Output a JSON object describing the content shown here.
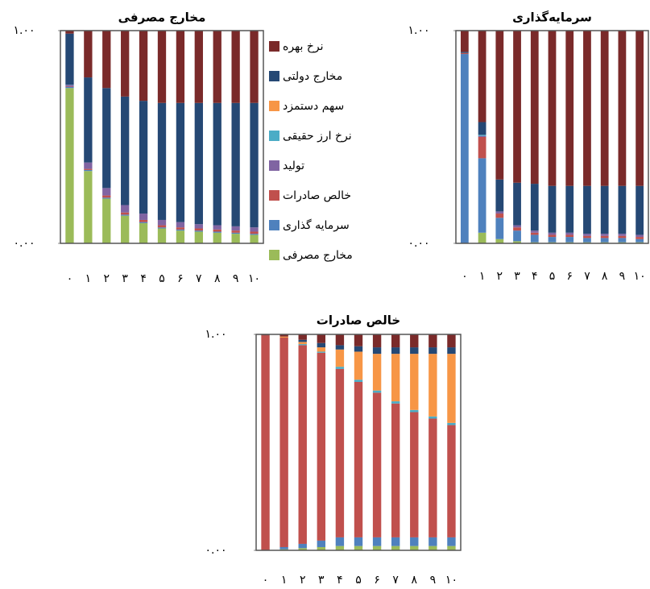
{
  "chart_data": [
    {
      "type": "bar",
      "stacked": true,
      "title": "مخارج مصرفی",
      "categories": [
        "۰",
        "۱",
        "۲",
        "۳",
        "۴",
        "۵",
        "۶",
        "۷",
        "۸",
        "۹",
        "۱۰"
      ],
      "ylim": [
        0,
        1
      ],
      "yticks": [
        {
          "value": 0,
          "label": "۰.۰۰"
        },
        {
          "value": 1,
          "label": "۱.۰۰"
        }
      ],
      "legend": "right",
      "series": [
        {
          "name": "مخارج مصرفی",
          "color": "#9bbb59",
          "values": [
            0.73,
            0.34,
            0.21,
            0.13,
            0.095,
            0.07,
            0.06,
            0.055,
            0.05,
            0.045,
            0.04
          ]
        },
        {
          "name": "سرمایه گذاری",
          "color": "#4f81bd",
          "values": [
            0.005,
            0.005,
            0.005,
            0.005,
            0.005,
            0.005,
            0.005,
            0.005,
            0.005,
            0.005,
            0.005
          ]
        },
        {
          "name": "خالص صادرات",
          "color": "#c0504d",
          "values": [
            0.002,
            0.005,
            0.01,
            0.01,
            0.01,
            0.01,
            0.01,
            0.01,
            0.01,
            0.01,
            0.01
          ]
        },
        {
          "name": "تولید",
          "color": "#8064a2",
          "values": [
            0.008,
            0.03,
            0.035,
            0.035,
            0.03,
            0.025,
            0.025,
            0.02,
            0.02,
            0.02,
            0.02
          ]
        },
        {
          "name": "نرخ ارز حقیقی",
          "color": "#4bacc6",
          "values": [
            0.001,
            0,
            0,
            0,
            0,
            0,
            0,
            0,
            0,
            0,
            0
          ]
        },
        {
          "name": "سهم دستمزد",
          "color": "#f79646",
          "values": [
            0,
            0,
            0,
            0,
            0,
            0,
            0,
            0,
            0,
            0,
            0
          ]
        },
        {
          "name": "مخارج دولتی",
          "color": "#254874",
          "values": [
            0.24,
            0.4,
            0.47,
            0.51,
            0.53,
            0.55,
            0.56,
            0.57,
            0.575,
            0.58,
            0.585
          ]
        },
        {
          "name": "نرخ بهره",
          "color": "#7a2a2a",
          "values": [
            0.014,
            0.22,
            0.27,
            0.31,
            0.33,
            0.34,
            0.34,
            0.34,
            0.34,
            0.34,
            0.34
          ]
        }
      ]
    },
    {
      "type": "bar",
      "stacked": true,
      "title": "سرمایه‌گذاری",
      "categories": [
        "۰",
        "۱",
        "۲",
        "۳",
        "۴",
        "۵",
        "۶",
        "۷",
        "۸",
        "۹",
        "۱۰"
      ],
      "ylim": [
        0,
        1
      ],
      "yticks": [
        {
          "value": 0,
          "label": "۰.۰۰"
        },
        {
          "value": 1,
          "label": "۱.۰۰"
        }
      ],
      "series": [
        {
          "color": "#9bbb59",
          "values": [
            0,
            0.05,
            0.02,
            0.01,
            0.005,
            0.005,
            0.005,
            0.005,
            0.005,
            0.005,
            0.005
          ]
        },
        {
          "color": "#4f81bd",
          "values": [
            0.89,
            0.35,
            0.1,
            0.05,
            0.035,
            0.025,
            0.025,
            0.02,
            0.02,
            0.02,
            0.015
          ]
        },
        {
          "color": "#c0504d",
          "values": [
            0.005,
            0.1,
            0.02,
            0.015,
            0.01,
            0.01,
            0.01,
            0.01,
            0.01,
            0.01,
            0.01
          ]
        },
        {
          "color": "#8064a2",
          "values": [
            0,
            0.005,
            0.01,
            0.01,
            0.01,
            0.01,
            0.01,
            0.01,
            0.01,
            0.01,
            0.01
          ]
        },
        {
          "color": "#4bacc6",
          "values": [
            0,
            0.005,
            0,
            0,
            0,
            0,
            0,
            0,
            0,
            0,
            0
          ]
        },
        {
          "color": "#f79646",
          "values": [
            0,
            0,
            0,
            0,
            0,
            0,
            0,
            0,
            0,
            0,
            0
          ]
        },
        {
          "color": "#254874",
          "values": [
            0.005,
            0.06,
            0.15,
            0.2,
            0.22,
            0.22,
            0.22,
            0.225,
            0.225,
            0.225,
            0.23
          ]
        },
        {
          "color": "#7a2a2a",
          "values": [
            0.1,
            0.43,
            0.7,
            0.715,
            0.72,
            0.73,
            0.73,
            0.73,
            0.73,
            0.73,
            0.73
          ]
        }
      ]
    },
    {
      "type": "bar",
      "stacked": true,
      "title": "خالص صادرات",
      "categories": [
        "۰",
        "۱",
        "۲",
        "۳",
        "۴",
        "۵",
        "۶",
        "۷",
        "۸",
        "۹",
        "۱۰"
      ],
      "ylim": [
        0,
        1
      ],
      "yticks": [
        {
          "value": 0,
          "label": "۰.۰۰"
        },
        {
          "value": 1,
          "label": "۱.۰۰"
        }
      ],
      "series": [
        {
          "color": "#9bbb59",
          "values": [
            0,
            0.005,
            0.01,
            0.015,
            0.02,
            0.02,
            0.02,
            0.02,
            0.02,
            0.02,
            0.02
          ]
        },
        {
          "color": "#4f81bd",
          "values": [
            0,
            0.01,
            0.02,
            0.03,
            0.04,
            0.04,
            0.04,
            0.04,
            0.04,
            0.04,
            0.04
          ]
        },
        {
          "color": "#c0504d",
          "values": [
            0.995,
            0.97,
            0.92,
            0.87,
            0.78,
            0.72,
            0.67,
            0.62,
            0.58,
            0.55,
            0.52
          ]
        },
        {
          "color": "#8064a2",
          "values": [
            0,
            0,
            0,
            0,
            0,
            0,
            0,
            0,
            0,
            0,
            0
          ]
        },
        {
          "color": "#4bacc6",
          "values": [
            0,
            0,
            0.005,
            0.005,
            0.01,
            0.01,
            0.01,
            0.01,
            0.01,
            0.01,
            0.01
          ]
        },
        {
          "color": "#f79646",
          "values": [
            0,
            0.005,
            0.01,
            0.02,
            0.08,
            0.13,
            0.17,
            0.22,
            0.26,
            0.29,
            0.32
          ]
        },
        {
          "color": "#254874",
          "values": [
            0,
            0,
            0.01,
            0.02,
            0.02,
            0.025,
            0.03,
            0.03,
            0.03,
            0.03,
            0.03
          ]
        },
        {
          "color": "#7a2a2a",
          "values": [
            0.005,
            0.01,
            0.025,
            0.04,
            0.05,
            0.055,
            0.06,
            0.06,
            0.06,
            0.06,
            0.06
          ]
        }
      ]
    }
  ]
}
